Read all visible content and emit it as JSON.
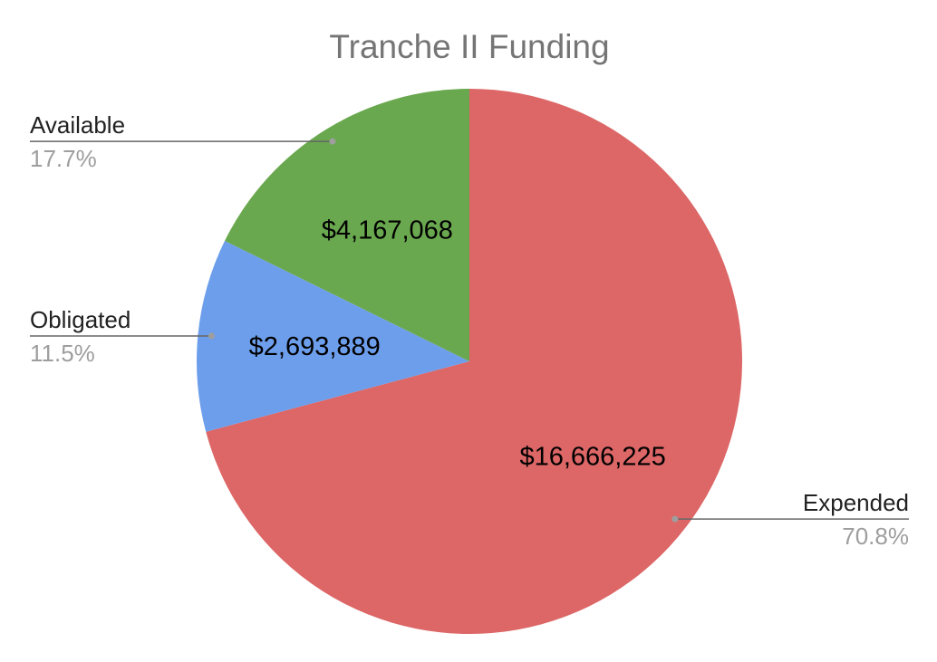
{
  "chart_data": {
    "type": "pie",
    "title": "Tranche II Funding",
    "categories": [
      "Expended",
      "Obligated",
      "Available"
    ],
    "values": [
      16666225,
      2693889,
      4167068
    ],
    "value_labels": [
      "$16,666,225",
      "$2,693,889",
      "$4,167,068"
    ],
    "percents": [
      70.8,
      11.5,
      17.7
    ],
    "percent_labels": [
      "70.8%",
      "11.5%",
      "17.7%"
    ],
    "colors": [
      "#dd6666",
      "#6d9eeb",
      "#6aa84f"
    ]
  }
}
